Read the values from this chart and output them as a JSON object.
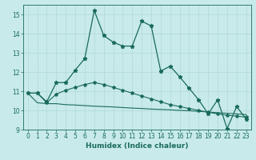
{
  "xlabel": "Humidex (Indice chaleur)",
  "background_color": "#c8eaea",
  "grid_color": "#b0d8d8",
  "line_color": "#1a6b5a",
  "xlim": [
    -0.5,
    23.5
  ],
  "ylim": [
    9,
    15.5
  ],
  "yticks": [
    9,
    10,
    11,
    12,
    13,
    14,
    15
  ],
  "xticks": [
    0,
    1,
    2,
    3,
    4,
    5,
    6,
    7,
    8,
    9,
    10,
    11,
    12,
    13,
    14,
    15,
    16,
    17,
    18,
    19,
    20,
    21,
    22,
    23
  ],
  "series1_x": [
    0,
    1,
    2,
    3,
    4,
    5,
    6,
    7,
    8,
    9,
    10,
    11,
    12,
    13,
    14,
    15,
    16,
    17,
    18,
    19,
    20,
    21,
    22,
    23
  ],
  "series1_y": [
    10.9,
    10.9,
    10.45,
    11.45,
    11.45,
    12.1,
    12.7,
    15.2,
    13.9,
    13.55,
    13.35,
    13.35,
    14.65,
    14.4,
    12.05,
    12.3,
    11.75,
    11.15,
    10.55,
    9.82,
    10.55,
    9.05,
    10.2,
    9.55
  ],
  "series2_x": [
    0,
    1,
    2,
    3,
    4,
    5,
    6,
    7,
    8,
    9,
    10,
    11,
    12,
    13,
    14,
    15,
    16,
    17,
    18,
    19,
    20,
    21,
    22,
    23
  ],
  "series2_y": [
    10.9,
    10.9,
    10.4,
    10.85,
    11.05,
    11.2,
    11.35,
    11.45,
    11.35,
    11.2,
    11.05,
    10.9,
    10.75,
    10.6,
    10.45,
    10.3,
    10.2,
    10.1,
    10.0,
    9.9,
    9.82,
    9.75,
    9.7,
    9.65
  ],
  "series3_x": [
    0,
    1,
    2,
    3,
    4,
    5,
    6,
    7,
    8,
    9,
    10,
    11,
    12,
    13,
    14,
    15,
    16,
    17,
    18,
    19,
    20,
    21,
    22,
    23
  ],
  "series3_y": [
    10.9,
    10.4,
    10.35,
    10.35,
    10.3,
    10.28,
    10.25,
    10.22,
    10.2,
    10.18,
    10.15,
    10.12,
    10.1,
    10.07,
    10.05,
    10.03,
    10.0,
    9.98,
    9.95,
    9.92,
    9.88,
    9.85,
    9.82,
    9.78
  ],
  "tick_fontsize": 5.5,
  "xlabel_fontsize": 6.5
}
